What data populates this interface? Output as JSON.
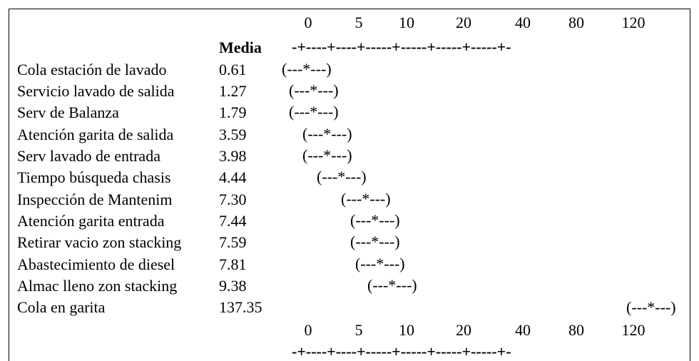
{
  "header": {
    "mean_label": "Media"
  },
  "axis": {
    "ticks": [
      "0",
      "5",
      "10",
      "20",
      "40",
      "80",
      "120"
    ],
    "rule": "-+----+----+-----+-----+-----+-----+-"
  },
  "rows": [
    {
      "name": "Cola estación de lavado",
      "mean": "0.61",
      "interval": "(---*---)"
    },
    {
      "name": "Servicio lavado de salida",
      "mean": "1.27",
      "interval": "(---*---)"
    },
    {
      "name": "Serv de Balanza",
      "mean": "1.79",
      "interval": "(---*---)"
    },
    {
      "name": "Atención garita de salida",
      "mean": "3.59",
      "interval": "(---*---)"
    },
    {
      "name": "Serv lavado de entrada",
      "mean": "3.98",
      "interval": "(---*---)"
    },
    {
      "name": "Tiempo búsqueda chasis",
      "mean": "4.44",
      "interval": "(---*---)"
    },
    {
      "name": "Inspección de Mantenim",
      "mean": "7.30",
      "interval": "(---*---)"
    },
    {
      "name": "Atención garita entrada",
      "mean": "7.44",
      "interval": "(---*---)"
    },
    {
      "name": "Retirar vacio zon stacking",
      "mean": "7.59",
      "interval": "(---*---)"
    },
    {
      "name": "Abastecimiento de diesel",
      "mean": "7.81",
      "interval": "(---*---)"
    },
    {
      "name": "Almac lleno zon stacking",
      "mean": "9.38",
      "interval": "(---*---)"
    },
    {
      "name": "Cola en garita",
      "mean": "137.35",
      "interval": "(---*---)"
    }
  ]
}
